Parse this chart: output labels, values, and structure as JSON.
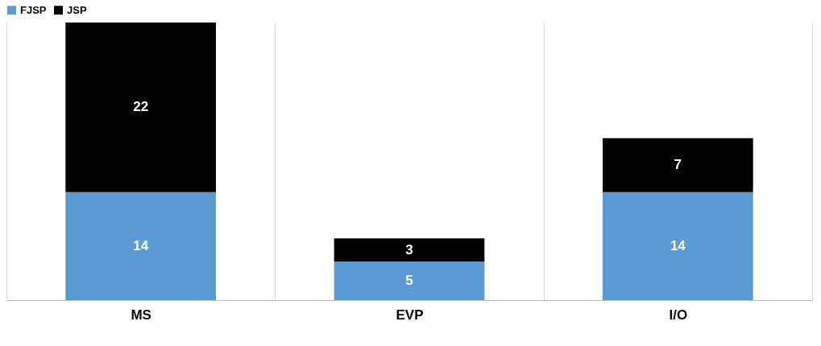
{
  "chart_data": {
    "type": "bar",
    "stacked": true,
    "categories": [
      "MS",
      "EVP",
      "I/O"
    ],
    "series": [
      {
        "name": "FJSP",
        "color": "#5b9bd5",
        "values": [
          14,
          5,
          14
        ]
      },
      {
        "name": "JSP",
        "color": "#000000",
        "values": [
          22,
          3,
          7
        ]
      }
    ],
    "tick_labels": "x",
    "data_labels": true,
    "grid": "x",
    "legend": "top left"
  }
}
